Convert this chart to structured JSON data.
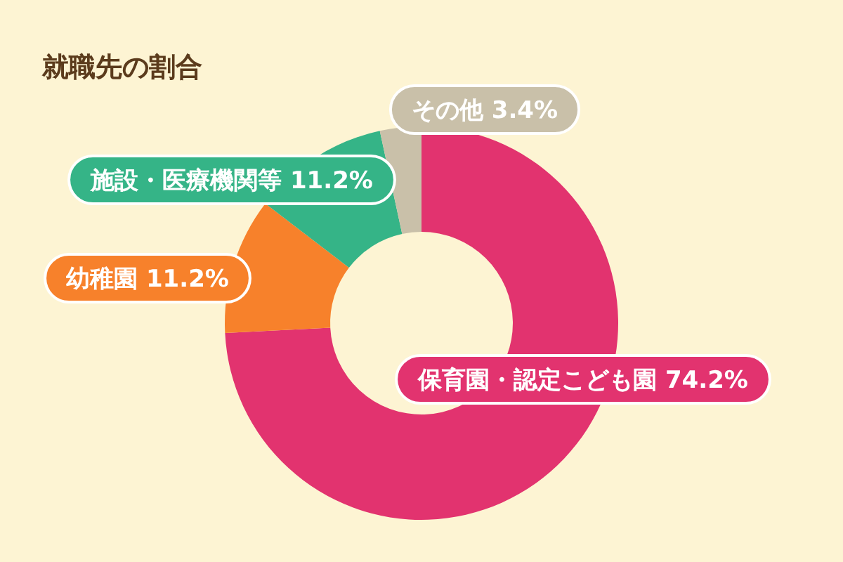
{
  "chart_data": {
    "type": "donut",
    "title": "就職先の割合",
    "categories": [
      "保育園・認定こども園",
      "幼稚園",
      "施設・医療機関等",
      "その他"
    ],
    "values": [
      74.2,
      11.2,
      11.2,
      3.4
    ],
    "value_labels": [
      "74.2%",
      "11.2%",
      "11.2%",
      "3.4%"
    ],
    "colors": [
      "#e2336f",
      "#f7812b",
      "#35b487",
      "#c9c0a9"
    ],
    "legend": false
  }
}
